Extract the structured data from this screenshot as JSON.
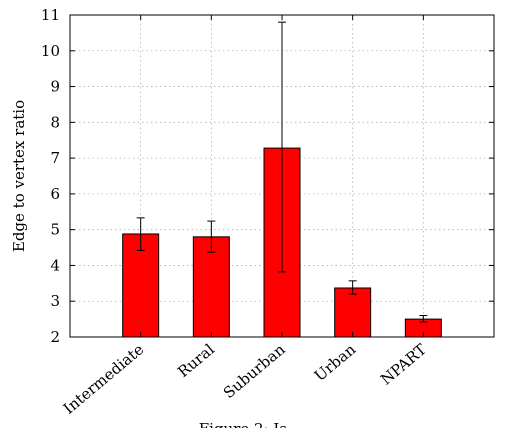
{
  "chart_data": {
    "type": "bar",
    "title": "",
    "xlabel": "",
    "ylabel": "Edge to vertex ratio",
    "categories": [
      "Intermediate",
      "Rural",
      "Suburban",
      "Urban",
      "NPART"
    ],
    "values": [
      4.88,
      4.8,
      7.28,
      3.37,
      2.5
    ],
    "error_low": [
      4.42,
      4.37,
      3.82,
      3.2,
      2.42
    ],
    "error_high": [
      5.33,
      5.24,
      10.8,
      3.57,
      2.6
    ],
    "ylim": [
      2,
      11
    ],
    "yticks": [
      2,
      3,
      4,
      5,
      6,
      7,
      8,
      9,
      10,
      11
    ],
    "grid": true,
    "bar_color": "#ff0000",
    "caption": "Figure 2: Is..."
  }
}
